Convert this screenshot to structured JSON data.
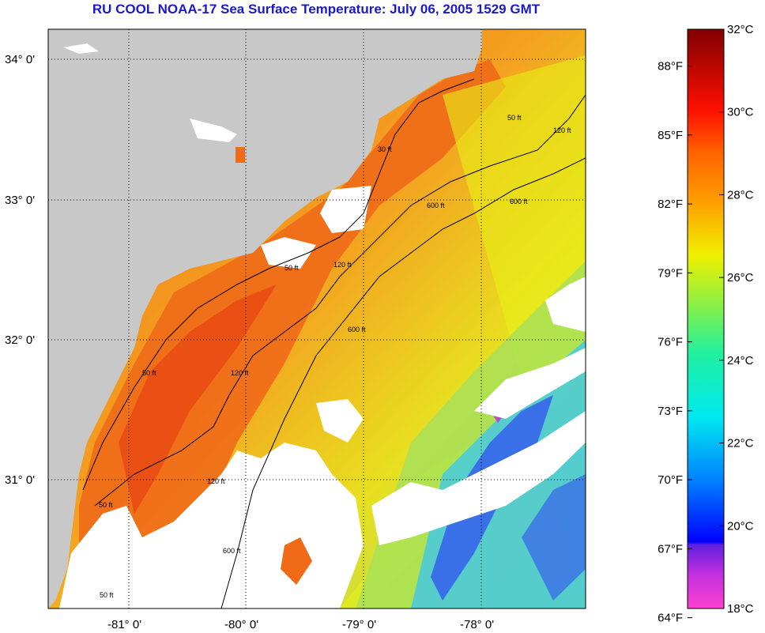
{
  "title": "RU COOL  NOAA-17  Sea Surface Temperature:  July 06, 2005 1529 GMT",
  "map": {
    "lat_labels": [
      "34° 0'",
      "33° 0'",
      "32° 0'",
      "31° 0'"
    ],
    "lon_labels": [
      "-81° 0'",
      "-80° 0'",
      "-79° 0'",
      "-78° 0'"
    ],
    "contour_labels": [
      "50 ft",
      "120 ft",
      "600 ft",
      "50 ft",
      "120 ft",
      "600 ft",
      "50 ft",
      "120 ft",
      "600 ft",
      "50 ft",
      "120 ft",
      "600 ft",
      "30 ft",
      "50 ft"
    ],
    "colors": {
      "land": "#c8c8c8",
      "cloud": "#ffffff",
      "warm": "#f06a18",
      "hot": "#e83c10",
      "mid": "#f8b818",
      "yellow": "#e8f018",
      "green": "#a0e060",
      "cyan": "#40c8e8",
      "blue": "#3050f0",
      "magenta": "#c030d0"
    }
  },
  "scale": {
    "fahrenheit_labels": [
      "88°F",
      "85°F",
      "82°F",
      "79°F",
      "76°F",
      "73°F",
      "70°F",
      "67°F",
      "64°F"
    ],
    "celsius_labels": [
      "32°C",
      "30°C",
      "28°C",
      "26°C",
      "24°C",
      "22°C",
      "20°C",
      "18°C"
    ],
    "fahrenheit_values": [
      88,
      85,
      82,
      79,
      76,
      73,
      70,
      67,
      64
    ],
    "celsius_values": [
      32,
      30,
      28,
      26,
      24,
      22,
      20,
      18
    ],
    "min_c": 18,
    "max_c": 32
  }
}
